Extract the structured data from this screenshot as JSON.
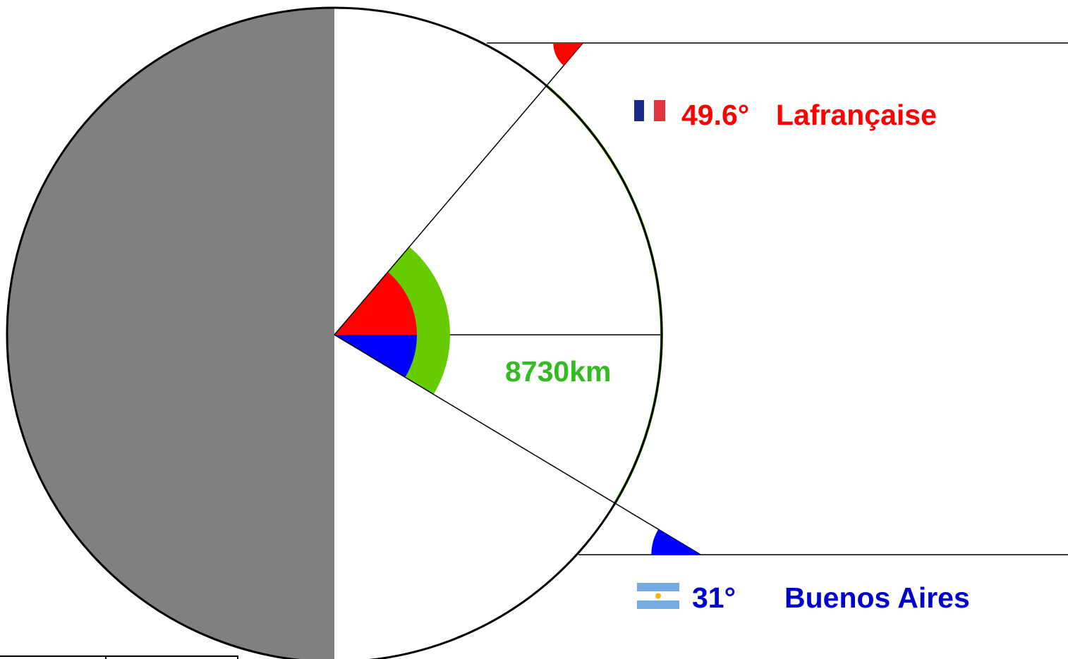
{
  "colors": {
    "background": "#ffffff",
    "night_side": "#808080",
    "outline": "#000000",
    "france_red": "#ff0000",
    "argentina_blue": "#0000ff",
    "arc_green": "#66cc00",
    "distance_text": "#33bb22",
    "flag_fr_blue": "#1a2a8c",
    "flag_fr_red": "#e0343c",
    "flag_ar_blue": "#74acdf",
    "flag_ar_sun": "#f6b40e"
  },
  "locations": [
    {
      "id": "lafrancaise",
      "latitude": 49.6,
      "hemisphere": "north",
      "flag": "france-flag-icon",
      "latitude_label": "49.6°",
      "name": "Lafrançaise"
    },
    {
      "id": "buenos-aires",
      "latitude": 31,
      "hemisphere": "south",
      "flag": "argentina-flag-icon",
      "latitude_label": "31°",
      "name": "Buenos Aires"
    }
  ],
  "distance": {
    "label": "8730km"
  }
}
